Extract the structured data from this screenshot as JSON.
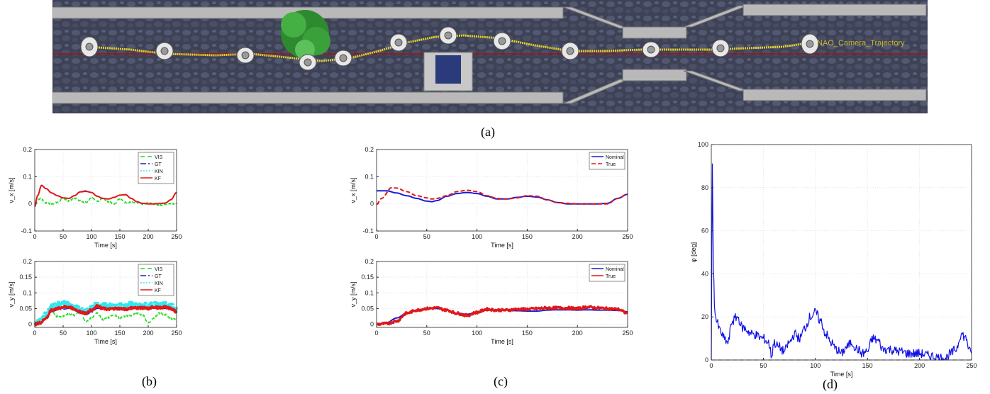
{
  "captions": {
    "a": "(a)",
    "b": "(b)",
    "c": "(c)",
    "d": "(d)"
  },
  "scene": {
    "trajectory_label": "NAO_Camera_Trajectory"
  },
  "chart_data": [
    {
      "id": "b1",
      "type": "line",
      "xlabel": "Time [s]",
      "ylabel": "v_x [m/s]",
      "xlim": [
        0,
        250
      ],
      "ylim": [
        -0.1,
        0.2
      ],
      "xticks": [
        0,
        50,
        100,
        150,
        200,
        250
      ],
      "yticks": [
        -0.1,
        0,
        0.1,
        0.2
      ],
      "grid": true,
      "legend_position": "top-right",
      "series": [
        {
          "name": "VIS",
          "color": "#22dd22",
          "dash": "6,4",
          "noise": 0.003,
          "x": [
            0,
            10,
            20,
            30,
            40,
            50,
            60,
            70,
            80,
            90,
            100,
            110,
            120,
            130,
            140,
            150,
            160,
            170,
            180,
            190,
            200,
            210,
            220,
            230,
            240,
            250
          ],
          "y": [
            0.0,
            0.02,
            0.003,
            0.0,
            0.005,
            0.02,
            0.01,
            0.022,
            0.012,
            0.005,
            0.022,
            0.008,
            0.02,
            0.008,
            0.0,
            0.02,
            0.005,
            0.005,
            0.005,
            0.0,
            0.005,
            0.0,
            -0.005,
            0.0,
            0.0,
            0.0
          ]
        },
        {
          "name": "GT",
          "color": "#1a1adb",
          "dash": "8,3,2,3",
          "noise": 0,
          "x": [
            0,
            5,
            12,
            20,
            30,
            40,
            50,
            60,
            70,
            80,
            90,
            100,
            110,
            120,
            130,
            140,
            150,
            160,
            170,
            180,
            190,
            200,
            210,
            220,
            230,
            240,
            250
          ],
          "y": [
            -0.01,
            0.03,
            0.068,
            0.055,
            0.04,
            0.03,
            0.022,
            0.02,
            0.03,
            0.045,
            0.048,
            0.042,
            0.028,
            0.02,
            0.018,
            0.024,
            0.032,
            0.033,
            0.02,
            0.008,
            0.002,
            0.0,
            0.0,
            0.001,
            0.003,
            0.015,
            0.042
          ]
        },
        {
          "name": "KIN",
          "color": "#33e6ee",
          "dash": "2,2",
          "noise": 0,
          "x": [
            0,
            5,
            12,
            20,
            30,
            40,
            50,
            60,
            70,
            80,
            90,
            100,
            110,
            120,
            130,
            140,
            150,
            160,
            170,
            180,
            190,
            200,
            210,
            220,
            230,
            240,
            250
          ],
          "y": [
            -0.01,
            0.03,
            0.067,
            0.055,
            0.04,
            0.03,
            0.022,
            0.02,
            0.03,
            0.045,
            0.047,
            0.042,
            0.028,
            0.02,
            0.018,
            0.024,
            0.032,
            0.033,
            0.02,
            0.008,
            0.002,
            0.0,
            0.0,
            0.001,
            0.003,
            0.015,
            0.041
          ]
        },
        {
          "name": "KF",
          "color": "#e01818",
          "dash": "",
          "width": 2,
          "noise": 0,
          "x": [
            0,
            5,
            12,
            20,
            30,
            40,
            50,
            60,
            70,
            80,
            90,
            100,
            110,
            120,
            130,
            140,
            150,
            160,
            170,
            180,
            190,
            200,
            210,
            220,
            230,
            240,
            250
          ],
          "y": [
            -0.01,
            0.03,
            0.068,
            0.056,
            0.04,
            0.03,
            0.022,
            0.02,
            0.03,
            0.044,
            0.046,
            0.042,
            0.028,
            0.02,
            0.018,
            0.024,
            0.032,
            0.034,
            0.02,
            0.008,
            0.002,
            0.0,
            0.0,
            0.001,
            0.003,
            0.015,
            0.042
          ]
        }
      ]
    },
    {
      "id": "b2",
      "type": "line",
      "xlabel": "Time [s]",
      "ylabel": "v_y [m/s]",
      "xlim": [
        0,
        250
      ],
      "ylim": [
        -0.01,
        0.2
      ],
      "xticks": [
        0,
        50,
        100,
        150,
        200,
        250
      ],
      "yticks": [
        0,
        0.05,
        0.1,
        0.15,
        0.2
      ],
      "grid": true,
      "legend_position": "top-right",
      "series": [
        {
          "name": "VIS",
          "color": "#22dd22",
          "dash": "6,4",
          "noise": 0.003,
          "x": [
            0,
            10,
            20,
            30,
            40,
            50,
            60,
            70,
            80,
            90,
            100,
            110,
            120,
            130,
            140,
            150,
            160,
            170,
            180,
            190,
            200,
            210,
            220,
            230,
            240,
            250
          ],
          "y": [
            0.0,
            0.005,
            0.02,
            0.04,
            0.025,
            0.025,
            0.032,
            0.028,
            0.04,
            0.01,
            0.02,
            0.035,
            0.015,
            0.022,
            0.03,
            0.02,
            0.025,
            0.028,
            0.035,
            0.03,
            0.005,
            0.02,
            0.035,
            0.03,
            0.018,
            0.015
          ]
        },
        {
          "name": "KIN",
          "color": "#33e6ee",
          "dash": "2,2",
          "width": 5,
          "noise": 0.008,
          "x": [
            0,
            10,
            20,
            30,
            40,
            50,
            60,
            70,
            80,
            90,
            100,
            110,
            120,
            130,
            140,
            150,
            160,
            170,
            180,
            190,
            200,
            210,
            220,
            230,
            240,
            250
          ],
          "y": [
            0.0,
            0.01,
            0.03,
            0.055,
            0.062,
            0.065,
            0.063,
            0.055,
            0.045,
            0.04,
            0.05,
            0.065,
            0.058,
            0.058,
            0.06,
            0.06,
            0.058,
            0.062,
            0.06,
            0.06,
            0.058,
            0.062,
            0.06,
            0.062,
            0.058,
            0.045
          ]
        },
        {
          "name": "GT",
          "color": "#1a1adb",
          "dash": "8,3,2,3",
          "noise": 0,
          "x": [
            0,
            10,
            20,
            30,
            40,
            50,
            60,
            70,
            80,
            90,
            100,
            110,
            120,
            130,
            140,
            150,
            160,
            170,
            180,
            190,
            200,
            210,
            220,
            230,
            240,
            250
          ],
          "y": [
            0.0,
            0.005,
            0.02,
            0.04,
            0.045,
            0.048,
            0.05,
            0.045,
            0.035,
            0.03,
            0.038,
            0.05,
            0.05,
            0.048,
            0.047,
            0.046,
            0.048,
            0.05,
            0.052,
            0.052,
            0.05,
            0.052,
            0.05,
            0.05,
            0.05,
            0.04
          ]
        },
        {
          "name": "KF",
          "color": "#e01818",
          "dash": "",
          "width": 3,
          "noise": 0.004,
          "x": [
            0,
            10,
            20,
            30,
            40,
            50,
            60,
            70,
            80,
            90,
            100,
            110,
            120,
            130,
            140,
            150,
            160,
            170,
            180,
            190,
            200,
            210,
            220,
            230,
            240,
            250
          ],
          "y": [
            0.0,
            0.005,
            0.02,
            0.045,
            0.05,
            0.055,
            0.055,
            0.048,
            0.04,
            0.035,
            0.045,
            0.058,
            0.05,
            0.048,
            0.05,
            0.05,
            0.048,
            0.052,
            0.052,
            0.052,
            0.05,
            0.055,
            0.052,
            0.055,
            0.05,
            0.04
          ]
        }
      ]
    },
    {
      "id": "c1",
      "type": "line",
      "xlabel": "Time [s]",
      "ylabel": "v_x [m/s]",
      "xlim": [
        0,
        250
      ],
      "ylim": [
        -0.1,
        0.2
      ],
      "xticks": [
        0,
        50,
        100,
        150,
        200,
        250
      ],
      "yticks": [
        -0.1,
        0,
        0.1,
        0.2
      ],
      "grid": true,
      "legend_position": "top-right",
      "series": [
        {
          "name": "Nominal",
          "color": "#1a1adb",
          "dash": "",
          "width": 2,
          "noise": 0,
          "x": [
            0,
            10,
            20,
            30,
            40,
            50,
            55,
            60,
            70,
            80,
            90,
            100,
            110,
            120,
            130,
            140,
            150,
            160,
            170,
            180,
            190,
            200,
            210,
            220,
            230,
            240,
            250
          ],
          "y": [
            0.048,
            0.048,
            0.04,
            0.03,
            0.02,
            0.01,
            0.008,
            0.012,
            0.028,
            0.038,
            0.042,
            0.038,
            0.028,
            0.018,
            0.018,
            0.024,
            0.028,
            0.025,
            0.015,
            0.005,
            0.0,
            0.0,
            0.0,
            0.0,
            0.002,
            0.02,
            0.035
          ]
        },
        {
          "name": "True",
          "color": "#e01818",
          "dash": "6,3",
          "width": 2,
          "noise": 0,
          "x": [
            0,
            5,
            15,
            20,
            30,
            40,
            50,
            55,
            60,
            70,
            80,
            90,
            100,
            110,
            120,
            130,
            140,
            150,
            160,
            170,
            180,
            190,
            200,
            210,
            220,
            230,
            240,
            250
          ],
          "y": [
            -0.002,
            0.02,
            0.06,
            0.058,
            0.045,
            0.03,
            0.022,
            0.018,
            0.02,
            0.03,
            0.045,
            0.05,
            0.045,
            0.03,
            0.02,
            0.018,
            0.022,
            0.03,
            0.028,
            0.015,
            0.005,
            0.002,
            0.0,
            0.0,
            0.0,
            0.0,
            0.02,
            0.036
          ]
        }
      ]
    },
    {
      "id": "c2",
      "type": "line",
      "xlabel": "Time [s]",
      "ylabel": "v_y [m/s]",
      "xlim": [
        0,
        250
      ],
      "ylim": [
        -0.01,
        0.2
      ],
      "xticks": [
        0,
        50,
        100,
        150,
        200,
        250
      ],
      "yticks": [
        0,
        0.05,
        0.1,
        0.15,
        0.2
      ],
      "grid": true,
      "legend_position": "top-right",
      "series": [
        {
          "name": "Nominal",
          "color": "#1a1adb",
          "dash": "",
          "width": 2,
          "noise": 0,
          "x": [
            0,
            10,
            20,
            30,
            40,
            50,
            60,
            70,
            80,
            90,
            100,
            110,
            120,
            130,
            140,
            150,
            160,
            170,
            180,
            190,
            200,
            210,
            220,
            230,
            240,
            250
          ],
          "y": [
            0.0,
            0.005,
            0.02,
            0.035,
            0.045,
            0.05,
            0.05,
            0.045,
            0.035,
            0.032,
            0.038,
            0.045,
            0.045,
            0.045,
            0.043,
            0.042,
            0.042,
            0.045,
            0.046,
            0.046,
            0.045,
            0.046,
            0.045,
            0.045,
            0.044,
            0.04
          ]
        },
        {
          "name": "True",
          "color": "#e01818",
          "dash": "",
          "width": 3,
          "noise": 0.004,
          "x": [
            0,
            10,
            20,
            30,
            40,
            50,
            60,
            70,
            80,
            90,
            100,
            110,
            120,
            130,
            140,
            150,
            160,
            170,
            180,
            190,
            200,
            210,
            220,
            230,
            240,
            250
          ],
          "y": [
            0.0,
            0.002,
            0.01,
            0.035,
            0.045,
            0.05,
            0.052,
            0.045,
            0.035,
            0.028,
            0.038,
            0.048,
            0.045,
            0.045,
            0.048,
            0.048,
            0.05,
            0.052,
            0.052,
            0.052,
            0.05,
            0.055,
            0.052,
            0.05,
            0.048,
            0.035
          ]
        }
      ]
    },
    {
      "id": "d",
      "type": "line",
      "xlabel": "Time [s]",
      "ylabel": "φ [deg]",
      "xlim": [
        0,
        250
      ],
      "ylim": [
        0,
        100
      ],
      "xticks": [
        0,
        50,
        100,
        150,
        200,
        250
      ],
      "yticks": [
        0,
        20,
        40,
        60,
        80,
        100
      ],
      "grid": true,
      "series": [
        {
          "name": "phi",
          "color": "#1010e6",
          "dash": "",
          "width": 1.2,
          "noise": 2.2,
          "x": [
            0,
            1,
            2,
            3,
            5,
            8,
            12,
            16,
            20,
            25,
            30,
            40,
            50,
            55,
            58,
            60,
            65,
            70,
            75,
            80,
            85,
            90,
            95,
            100,
            105,
            110,
            115,
            120,
            125,
            130,
            135,
            140,
            145,
            150,
            155,
            160,
            165,
            170,
            180,
            190,
            200,
            210,
            220,
            225,
            230,
            235,
            240,
            245,
            248,
            250
          ],
          "y": [
            0,
            90,
            45,
            25,
            18,
            14,
            10,
            8,
            18,
            20,
            15,
            12,
            10,
            8,
            2,
            8,
            6,
            4,
            8,
            12,
            10,
            15,
            20,
            22,
            18,
            12,
            8,
            5,
            3,
            6,
            8,
            5,
            3,
            4,
            10,
            9,
            5,
            5,
            4,
            3,
            3,
            2,
            1,
            1,
            3,
            5,
            12,
            10,
            4,
            3
          ]
        },
        {
          "name": "zero",
          "color": "#333333",
          "dash": "6,4",
          "width": 1,
          "noise": 0,
          "x": [
            0,
            250
          ],
          "y": [
            0,
            0
          ]
        }
      ]
    }
  ]
}
